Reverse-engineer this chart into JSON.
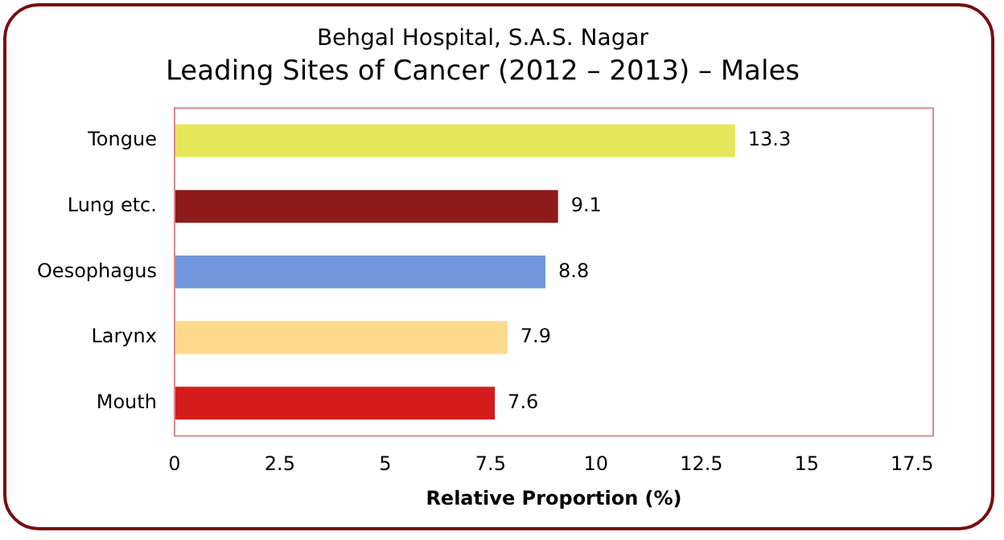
{
  "chart_data": {
    "type": "bar",
    "orientation": "horizontal",
    "title": "Behgal Hospital, S.A.S. Nagar",
    "subtitle": "Leading Sites of Cancer (2012 – 2013) – Males",
    "xlabel": "Relative Proportion (%)",
    "categories": [
      "Tongue",
      "Lung etc.",
      "Oesophagus",
      "Larynx",
      "Mouth"
    ],
    "values": [
      13.3,
      9.1,
      8.8,
      7.9,
      7.6
    ],
    "colors": [
      "#e6e65a",
      "#8e1a1a",
      "#7096dc",
      "#fdd98e",
      "#d41c1c"
    ],
    "xlim": [
      0,
      18
    ],
    "xticks": [
      0,
      2.5,
      5,
      7.5,
      10,
      12.5,
      15,
      17.5
    ],
    "grid": false,
    "legend": false,
    "data_labels": true
  }
}
